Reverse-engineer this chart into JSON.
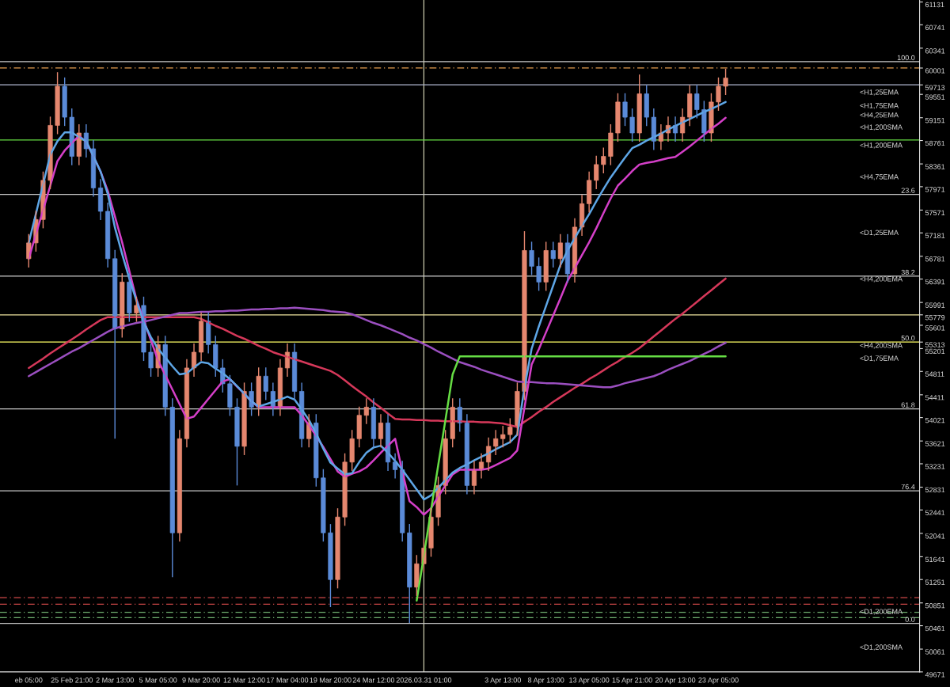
{
  "chart_data": {
    "type": "candlestick",
    "categories": [
      "eb 05:00",
      null,
      null,
      null,
      null,
      null,
      "25 Feb 21:00",
      null,
      null,
      null,
      null,
      null,
      "2 Mar 13:00",
      null,
      null,
      null,
      null,
      null,
      "5 Mar 05:00",
      null,
      null,
      null,
      null,
      null,
      "9 Mar 20:00",
      null,
      null,
      null,
      null,
      null,
      "12 Mar 12:00",
      null,
      null,
      null,
      null,
      null,
      "17 Mar 04:00",
      null,
      null,
      null,
      null,
      null,
      "19 Mar 20:00",
      null,
      null,
      null,
      null,
      null,
      "24 Mar 12:00",
      null,
      null,
      null,
      null,
      null,
      null,
      "2026.03.31 01:00",
      null,
      null,
      null,
      null,
      null,
      null,
      null,
      null,
      null,
      null,
      "3 Apr 13:00",
      null,
      null,
      null,
      null,
      null,
      "8 Apr 13:00",
      null,
      null,
      null,
      null,
      null,
      "13 Apr 05:00",
      null,
      null,
      null,
      null,
      null,
      "15 Apr 21:00",
      null,
      null,
      null,
      null,
      null,
      "20 Apr 13:00",
      null,
      null,
      null,
      null,
      null,
      "23 Apr 05:00",
      null
    ],
    "ohlc": [
      [
        56740,
        57160,
        56590,
        57010
      ],
      [
        57010,
        57560,
        56860,
        57410
      ],
      [
        57410,
        58230,
        57260,
        58080
      ],
      [
        58080,
        59170,
        57930,
        59020
      ],
      [
        59020,
        59930,
        58870,
        59690
      ],
      [
        59690,
        59840,
        59010,
        59160
      ],
      [
        59160,
        59310,
        58340,
        58490
      ],
      [
        58490,
        59040,
        58340,
        58890
      ],
      [
        58890,
        59040,
        58470,
        58620
      ],
      [
        58620,
        58770,
        57800,
        57950
      ],
      [
        57950,
        58100,
        57400,
        57550
      ],
      [
        57550,
        57700,
        56590,
        56740
      ],
      [
        56740,
        56890,
        53660,
        55540
      ],
      [
        55540,
        56490,
        55390,
        56340
      ],
      [
        56340,
        56490,
        55660,
        55810
      ],
      [
        55810,
        56090,
        55660,
        55940
      ],
      [
        55940,
        56090,
        54990,
        55140
      ],
      [
        55140,
        55290,
        54720,
        54870
      ],
      [
        54870,
        55420,
        54720,
        55270
      ],
      [
        55270,
        55420,
        54050,
        54200
      ],
      [
        54200,
        54350,
        51290,
        52050
      ],
      [
        52050,
        53810,
        51900,
        53660
      ],
      [
        53660,
        55020,
        53510,
        54870
      ],
      [
        54870,
        55290,
        54720,
        55140
      ],
      [
        55140,
        55820,
        54990,
        55670
      ],
      [
        55670,
        55820,
        55120,
        55270
      ],
      [
        55270,
        55420,
        54720,
        54870
      ],
      [
        54870,
        55020,
        54450,
        54600
      ],
      [
        54600,
        54750,
        54050,
        54200
      ],
      [
        54200,
        54350,
        52860,
        53530
      ],
      [
        53530,
        54620,
        53380,
        54470
      ],
      [
        54470,
        54620,
        54050,
        54200
      ],
      [
        54200,
        54880,
        54050,
        54730
      ],
      [
        54730,
        54880,
        54320,
        54470
      ],
      [
        54470,
        54620,
        54050,
        54200
      ],
      [
        54200,
        55020,
        54050,
        54870
      ],
      [
        54870,
        55290,
        54720,
        55140
      ],
      [
        55140,
        55290,
        54320,
        54470
      ],
      [
        54470,
        54620,
        53510,
        53660
      ],
      [
        53660,
        54080,
        53510,
        53930
      ],
      [
        53930,
        54080,
        52840,
        52990
      ],
      [
        52990,
        53140,
        51900,
        52050
      ],
      [
        52050,
        52200,
        50780,
        51250
      ],
      [
        51250,
        52470,
        51100,
        52320
      ],
      [
        52320,
        53410,
        52170,
        53260
      ],
      [
        53260,
        53810,
        53110,
        53660
      ],
      [
        53660,
        54210,
        53510,
        54060
      ],
      [
        54060,
        54350,
        53910,
        54200
      ],
      [
        54200,
        54350,
        53510,
        53660
      ],
      [
        53660,
        54080,
        53510,
        53930
      ],
      [
        53930,
        54080,
        53110,
        53260
      ],
      [
        53260,
        53410,
        52980,
        53130
      ],
      [
        53130,
        53280,
        51900,
        52050
      ],
      [
        52050,
        52200,
        50510,
        51120
      ],
      [
        51120,
        51670,
        50970,
        51520
      ],
      [
        51520,
        51940,
        51370,
        51790
      ],
      [
        51790,
        52470,
        51640,
        52320
      ],
      [
        52320,
        53010,
        52170,
        52860
      ],
      [
        52860,
        53810,
        52710,
        53660
      ],
      [
        53660,
        54350,
        53510,
        54200
      ],
      [
        54200,
        54350,
        53780,
        53930
      ],
      [
        53930,
        54080,
        52710,
        52860
      ],
      [
        52860,
        53280,
        52710,
        53130
      ],
      [
        53130,
        53410,
        52980,
        53260
      ],
      [
        53260,
        53680,
        53110,
        53530
      ],
      [
        53530,
        53810,
        53380,
        53660
      ],
      [
        53660,
        53880,
        53510,
        53730
      ],
      [
        53730,
        54010,
        53580,
        53860
      ],
      [
        53860,
        54620,
        53710,
        54470
      ],
      [
        54470,
        57210,
        54320,
        56880
      ],
      [
        56880,
        57030,
        56460,
        56610
      ],
      [
        56610,
        56760,
        56190,
        56340
      ],
      [
        56340,
        57030,
        56190,
        56880
      ],
      [
        56880,
        57030,
        56590,
        56740
      ],
      [
        56740,
        57160,
        56590,
        57010
      ],
      [
        57010,
        57160,
        56330,
        56480
      ],
      [
        56480,
        57430,
        56330,
        57280
      ],
      [
        57280,
        57830,
        57130,
        57680
      ],
      [
        57680,
        58230,
        57530,
        58080
      ],
      [
        58080,
        58500,
        57930,
        58350
      ],
      [
        58350,
        58640,
        58200,
        58490
      ],
      [
        58490,
        59040,
        58340,
        58890
      ],
      [
        58890,
        59570,
        58740,
        59420
      ],
      [
        59420,
        59570,
        59010,
        59160
      ],
      [
        59160,
        59310,
        58740,
        58890
      ],
      [
        58890,
        59890,
        58740,
        59560
      ],
      [
        59560,
        59710,
        59010,
        59160
      ],
      [
        59160,
        59310,
        58600,
        58750
      ],
      [
        58750,
        59040,
        58600,
        58890
      ],
      [
        58890,
        59170,
        58740,
        59020
      ],
      [
        59020,
        59170,
        58740,
        58890
      ],
      [
        58890,
        59310,
        58740,
        59160
      ],
      [
        59160,
        59710,
        59010,
        59560
      ],
      [
        59560,
        59710,
        59140,
        59290
      ],
      [
        59290,
        59440,
        58740,
        58890
      ],
      [
        58890,
        59570,
        58740,
        59420
      ],
      [
        59420,
        59840,
        59270,
        59690
      ],
      [
        59690,
        59990,
        59540,
        59830
      ]
    ],
    "colors": [
      "#e5876f",
      "#e5876f",
      "#e5876f",
      "#e5876f",
      "#e5876f",
      "#5b8bd8",
      "#5b8bd8",
      "#e5876f",
      "#5b8bd8",
      "#5b8bd8",
      "#5b8bd8",
      "#5b8bd8",
      "#5b8bd8",
      "#e5876f",
      "#5b8bd8",
      "#e5876f",
      "#5b8bd8",
      "#5b8bd8",
      "#e5876f",
      "#5b8bd8",
      "#5b8bd8",
      "#e5876f",
      "#e5876f",
      "#e5876f",
      "#e5876f",
      "#5b8bd8",
      "#5b8bd8",
      "#5b8bd8",
      "#5b8bd8",
      "#5b8bd8",
      "#e5876f",
      "#5b8bd8",
      "#e5876f",
      "#5b8bd8",
      "#5b8bd8",
      "#e5876f",
      "#e5876f",
      "#5b8bd8",
      "#5b8bd8",
      "#e5876f",
      "#5b8bd8",
      "#5b8bd8",
      "#5b8bd8",
      "#e5876f",
      "#e5876f",
      "#e5876f",
      "#e5876f",
      "#e5876f",
      "#5b8bd8",
      "#e5876f",
      "#5b8bd8",
      "#5b8bd8",
      "#5b8bd8",
      "#5b8bd8",
      "#e5876f",
      "#e5876f",
      "#e5876f",
      "#e5876f",
      "#e5876f",
      "#e5876f",
      "#5b8bd8",
      "#5b8bd8",
      "#e5876f",
      "#e5876f",
      "#e5876f",
      "#e5876f",
      "#e5876f",
      "#e5876f",
      "#e5876f",
      "#e5876f",
      "#5b8bd8",
      "#5b8bd8",
      "#e5876f",
      "#5b8bd8",
      "#e5876f",
      "#5b8bd8",
      "#e5876f",
      "#e5876f",
      "#e5876f",
      "#e5876f",
      "#e5876f",
      "#e5876f",
      "#e5876f",
      "#5b8bd8",
      "#5b8bd8",
      "#e5876f",
      "#5b8bd8",
      "#5b8bd8",
      "#e5876f",
      "#e5876f",
      "#5b8bd8",
      "#e5876f",
      "#e5876f",
      "#5b8bd8",
      "#5b8bd8",
      "#e5876f",
      "#e5876f",
      "#e5876f"
    ],
    "series": [
      {
        "type": "line",
        "color": "#d6385a",
        "values": [
          54870,
          54950,
          55030,
          55120,
          55200,
          55280,
          55360,
          55440,
          55530,
          55610,
          55690,
          55740,
          55740,
          55740,
          55740,
          55740,
          55740,
          55740,
          55740,
          55740,
          55740,
          55740,
          55740,
          55740,
          55710,
          55650,
          55590,
          55540,
          55480,
          55420,
          55370,
          55310,
          55250,
          55200,
          55140,
          55100,
          55060,
          55020,
          54980,
          54940,
          54900,
          54860,
          54820,
          54750,
          54660,
          54560,
          54470,
          54380,
          54280,
          54190,
          54090,
          54000,
          53990,
          53990,
          53980,
          53980,
          53970,
          53970,
          53960,
          53960,
          53960,
          53950,
          53950,
          53940,
          53940,
          53930,
          53920,
          53890,
          53860,
          53950,
          54030,
          54120,
          54200,
          54290,
          54370,
          54450,
          54530,
          54600,
          54680,
          54750,
          54830,
          54910,
          54980,
          55060,
          55130,
          55210,
          55310,
          55410,
          55510,
          55610,
          55710,
          55800,
          55900,
          56000,
          56100,
          56200,
          56300,
          56400
        ]
      },
      {
        "type": "line",
        "color": "#9b4fc0",
        "values": [
          54730,
          54800,
          54870,
          54940,
          55010,
          55080,
          55150,
          55210,
          55280,
          55350,
          55420,
          55490,
          55550,
          55580,
          55610,
          55640,
          55660,
          55690,
          55720,
          55750,
          55780,
          55810,
          55810,
          55820,
          55830,
          55830,
          55840,
          55840,
          55850,
          55850,
          55860,
          55870,
          55870,
          55880,
          55880,
          55890,
          55890,
          55900,
          55890,
          55880,
          55870,
          55860,
          55840,
          55830,
          55820,
          55790,
          55740,
          55690,
          55640,
          55600,
          55550,
          55500,
          55450,
          55390,
          55340,
          55280,
          55220,
          55150,
          55090,
          55030,
          54970,
          54930,
          54890,
          54840,
          54800,
          54760,
          54720,
          54680,
          54640,
          54630,
          54630,
          54620,
          54610,
          54610,
          54600,
          54590,
          54580,
          54570,
          54560,
          54550,
          54540,
          54540,
          54570,
          54610,
          54640,
          54670,
          54700,
          54730,
          54780,
          54840,
          54890,
          54940,
          54990,
          55050,
          55110,
          55170,
          55240,
          55300
        ]
      },
      {
        "type": "line",
        "color": "#d43fc8",
        "values": [
          56740,
          57160,
          57570,
          57990,
          58410,
          58590,
          58720,
          58840,
          58740,
          58490,
          58230,
          57900,
          57460,
          57020,
          56530,
          56040,
          55690,
          55350,
          55000,
          54750,
          54500,
          54250,
          54000,
          54040,
          54190,
          54340,
          54490,
          54640,
          54680,
          54550,
          54430,
          54300,
          54200,
          54200,
          54200,
          54200,
          54200,
          54200,
          54060,
          53890,
          53710,
          53520,
          53310,
          53100,
          53010,
          53060,
          53100,
          53170,
          53290,
          53420,
          53540,
          53660,
          53100,
          52590,
          52490,
          52360,
          52470,
          52670,
          52860,
          53050,
          53130,
          53130,
          53130,
          53130,
          53150,
          53210,
          53270,
          53330,
          53460,
          54190,
          54930,
          55190,
          55480,
          55770,
          56060,
          56360,
          56580,
          56800,
          57020,
          57260,
          57520,
          57770,
          57990,
          58110,
          58240,
          58350,
          58380,
          58400,
          58430,
          58460,
          58480,
          58570,
          58660,
          58760,
          58860,
          58960,
          59050,
          59150
        ]
      },
      {
        "type": "line",
        "color": "#5ea6e6",
        "values": [
          57010,
          57510,
          58010,
          58520,
          58750,
          58900,
          58900,
          58820,
          58750,
          58490,
          58230,
          57850,
          57270,
          56820,
          56400,
          56020,
          55650,
          55400,
          55200,
          55050,
          54900,
          54760,
          54780,
          54880,
          54970,
          54950,
          54860,
          54780,
          54680,
          54560,
          54430,
          54300,
          54210,
          54250,
          54290,
          54330,
          54380,
          54330,
          54160,
          53980,
          53750,
          53490,
          53250,
          53150,
          53050,
          53070,
          53260,
          53420,
          53510,
          53540,
          53420,
          53280,
          53130,
          52960,
          52790,
          52620,
          52690,
          52820,
          52950,
          53080,
          53160,
          53220,
          53290,
          53350,
          53410,
          53480,
          53540,
          53600,
          53730,
          54530,
          55200,
          55580,
          55930,
          56280,
          56630,
          56880,
          57090,
          57300,
          57500,
          57720,
          57930,
          58130,
          58300,
          58470,
          58630,
          58690,
          58760,
          58820,
          58880,
          58950,
          59010,
          59070,
          59130,
          59190,
          59250,
          59300,
          59360,
          59420
        ]
      },
      {
        "type": "line",
        "color": "#66dd44",
        "values": [
          null,
          null,
          null,
          null,
          null,
          null,
          null,
          null,
          null,
          null,
          null,
          null,
          null,
          null,
          null,
          null,
          null,
          null,
          null,
          null,
          null,
          null,
          null,
          null,
          null,
          null,
          null,
          null,
          null,
          null,
          null,
          null,
          null,
          null,
          null,
          null,
          null,
          null,
          null,
          null,
          null,
          null,
          null,
          null,
          null,
          null,
          null,
          null,
          null,
          null,
          null,
          null,
          null,
          null,
          50890,
          51660,
          52440,
          53210,
          53980,
          54760,
          55070,
          55070,
          55070,
          55070,
          55070,
          55070,
          55070,
          55070,
          55070,
          55070,
          55070,
          55070,
          55070,
          55070,
          55070,
          55070,
          55070,
          55070,
          55070,
          55070,
          55070,
          55070,
          55070,
          55070,
          55070,
          55070,
          55070,
          55070,
          55070,
          55070,
          55070,
          55070,
          55070,
          55070,
          55070,
          55070,
          55070,
          55070
        ]
      }
    ],
    "ylim": [
      49671,
      61165
    ],
    "yticks": [
      61131,
      60741,
      60341,
      {
        "value": 60001,
        "label": "60001"
      },
      59713,
      59551,
      59151,
      58761,
      58361,
      57971,
      57571,
      57181,
      56781,
      56391,
      55991,
      55779,
      55601,
      55313,
      55201,
      54811,
      54411,
      54021,
      53621,
      53231,
      52831,
      52441,
      52041,
      51641,
      51251,
      50851,
      50461,
      50061,
      49671
    ],
    "ref_lines": [
      {
        "axis": "x",
        "value": "2026.03.31 01:00",
        "color": "#e0e0c0"
      },
      {
        "axis": "y",
        "value": 60110,
        "color": "#c8c8c8"
      },
      {
        "axis": "y",
        "value": 57840,
        "color": "#c8c8c8"
      },
      {
        "axis": "y",
        "value": 56440,
        "color": "#c8c8c8"
      },
      {
        "axis": "y",
        "value": 54170,
        "color": "#c8c8c8"
      },
      {
        "axis": "y",
        "value": 52770,
        "color": "#c8c8c8"
      },
      {
        "axis": "y",
        "value": 50500,
        "color": "#c8c8c8"
      },
      {
        "axis": "y",
        "value": 60001,
        "color": "#e8a050",
        "line_style": "dashed"
      },
      {
        "axis": "y",
        "value": 59713,
        "color": "#b0b8d0"
      },
      {
        "axis": "y",
        "value": 55779,
        "color": "#f0e6a0"
      },
      {
        "axis": "y",
        "value": 55313,
        "color": "#ffff66"
      },
      {
        "axis": "y",
        "value": 58770,
        "color": "#66dd44"
      },
      {
        "axis": "y",
        "value": 50940,
        "color": "#d04848",
        "line_style": "dashed"
      },
      {
        "axis": "y",
        "value": 50830,
        "color": "#d04848",
        "line_style": "dashed"
      },
      {
        "axis": "y",
        "value": 50690,
        "color": "#70b070",
        "line_style": "dashed"
      },
      {
        "axis": "y",
        "value": 50600,
        "color": "#70b070",
        "line_style": "dashed"
      }
    ],
    "annotations": [
      {
        "text": "100.0",
        "y": 60110
      },
      {
        "text": "23.6",
        "y": 57840
      },
      {
        "text": "38.2",
        "y": 56440
      },
      {
        "text": "50.0",
        "y": 55313
      },
      {
        "text": "61.8",
        "y": 54170
      },
      {
        "text": "76.4",
        "y": 52770
      },
      {
        "text": "0.0",
        "y": 50500
      },
      "<H1,25EMA",
      "<H1,75EMA",
      "<H4,25EMA",
      "<H1,200SMA",
      "<H1,200EMA",
      "<H4,75EMA",
      "<D1,25EMA",
      "<H4,200EMA",
      "<H4,200SMA",
      "<D1,75EMA",
      "<D1,200EMA",
      "<D1,200SMA"
    ]
  }
}
